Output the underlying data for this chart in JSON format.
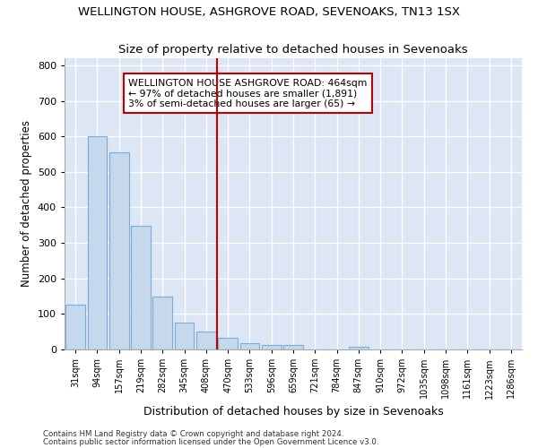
{
  "title": "WELLINGTON HOUSE, ASHGROVE ROAD, SEVENOAKS, TN13 1SX",
  "subtitle": "Size of property relative to detached houses in Sevenoaks",
  "xlabel": "Distribution of detached houses by size in Sevenoaks",
  "ylabel": "Number of detached properties",
  "categories": [
    "31sqm",
    "94sqm",
    "157sqm",
    "219sqm",
    "282sqm",
    "345sqm",
    "408sqm",
    "470sqm",
    "533sqm",
    "596sqm",
    "659sqm",
    "721sqm",
    "784sqm",
    "847sqm",
    "910sqm",
    "972sqm",
    "1035sqm",
    "1098sqm",
    "1161sqm",
    "1223sqm",
    "1286sqm"
  ],
  "values": [
    125,
    600,
    555,
    348,
    150,
    75,
    50,
    33,
    17,
    13,
    13,
    0,
    0,
    8,
    0,
    0,
    0,
    0,
    0,
    0,
    0
  ],
  "bar_color": "#c5d8ec",
  "bar_edge_color": "#7aaed6",
  "vline_x_index": 7,
  "vline_color": "#c00000",
  "annotation_text": "WELLINGTON HOUSE ASHGROVE ROAD: 464sqm\n← 97% of detached houses are smaller (1,891)\n3% of semi-detached houses are larger (65) →",
  "annotation_box_color": "#ffffff",
  "annotation_box_edge_color": "#c00000",
  "ylim": [
    0,
    820
  ],
  "yticks": [
    0,
    100,
    200,
    300,
    400,
    500,
    600,
    700,
    800
  ],
  "plot_bg_color": "#dce6f5",
  "fig_bg_color": "#ffffff",
  "grid_color": "#ffffff",
  "footer_line1": "Contains HM Land Registry data © Crown copyright and database right 2024.",
  "footer_line2": "Contains public sector information licensed under the Open Government Licence v3.0.",
  "title_fontsize": 9.5,
  "subtitle_fontsize": 9.5,
  "annot_fontsize": 7.8,
  "ylabel_fontsize": 8.5,
  "xlabel_fontsize": 9,
  "tick_fontsize": 7,
  "ytick_fontsize": 8
}
